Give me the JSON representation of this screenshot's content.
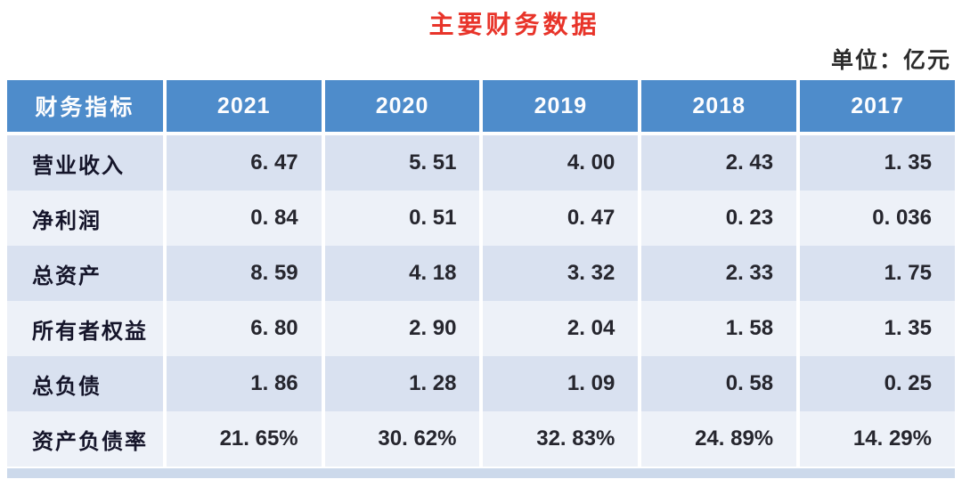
{
  "title": "主要财务数据",
  "unit_label": "单位：亿元",
  "colors": {
    "title_red": "#e8342a",
    "header_blue": "#4e8ccb",
    "band_light_blue": "#d9e1f0",
    "band_pale": "#edf1f8",
    "bottom_strip_blue": "#ccd9eb",
    "header_text": "#fdfdfe"
  },
  "table": {
    "headers": [
      "财务指标",
      "2021",
      "2020",
      "2019",
      "2018",
      "2017"
    ],
    "rows": [
      {
        "label": "营业收入",
        "values": [
          "6. 47",
          "5. 51",
          "4. 00",
          "2. 43",
          "1. 35"
        ]
      },
      {
        "label": "净利润",
        "values": [
          "0. 84",
          "0. 51",
          "0. 47",
          "0. 23",
          "0. 036"
        ]
      },
      {
        "label": "总资产",
        "values": [
          "8. 59",
          "4. 18",
          "3. 32",
          "2. 33",
          "1. 75"
        ]
      },
      {
        "label": "所有者权益",
        "values": [
          "6. 80",
          "2. 90",
          "2. 04",
          "1. 58",
          "1. 35"
        ]
      },
      {
        "label": "总负债",
        "values": [
          "1. 86",
          "1. 28",
          "1. 09",
          "0. 58",
          "0. 25"
        ]
      },
      {
        "label": "资产负债率",
        "values": [
          "21. 65%",
          "30. 62%",
          "32. 83%",
          "24. 89%",
          "14. 29%"
        ]
      }
    ]
  },
  "chart_data": {
    "type": "table",
    "title": "主要财务数据",
    "unit": "亿元",
    "categories": [
      "2021",
      "2020",
      "2019",
      "2018",
      "2017"
    ],
    "series": [
      {
        "name": "营业收入",
        "values": [
          6.47,
          5.51,
          4.0,
          2.43,
          1.35
        ]
      },
      {
        "name": "净利润",
        "values": [
          0.84,
          0.51,
          0.47,
          0.23,
          0.036
        ]
      },
      {
        "name": "总资产",
        "values": [
          8.59,
          4.18,
          3.32,
          2.33,
          1.75
        ]
      },
      {
        "name": "所有者权益",
        "values": [
          6.8,
          2.9,
          2.04,
          1.58,
          1.35
        ]
      },
      {
        "name": "总负债",
        "values": [
          1.86,
          1.28,
          1.09,
          0.58,
          0.25
        ]
      },
      {
        "name": "资产负债率(%)",
        "values": [
          21.65,
          30.62,
          32.83,
          24.89,
          14.29
        ]
      }
    ]
  }
}
